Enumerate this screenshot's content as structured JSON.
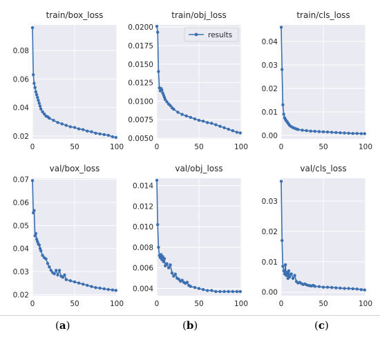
{
  "panel_labels": [
    "(a)",
    "(b)",
    "(c)"
  ],
  "panel_labels_bold": [
    "a",
    "b",
    "c"
  ],
  "chart_data": [
    {
      "type": "line",
      "title": "train/box_loss",
      "xlim": [
        0,
        100
      ],
      "ylim": [
        0.018,
        0.098
      ],
      "xticks": [
        0,
        50,
        100
      ],
      "yticks": [
        0.02,
        0.04,
        0.06,
        0.08
      ],
      "ytick_labels": [
        "0.02",
        "0.04",
        "0.06",
        "0.08"
      ],
      "grid": true,
      "series": [
        {
          "x": [
            0,
            1,
            2,
            3,
            4,
            5,
            6,
            7,
            8,
            9,
            10,
            12,
            14,
            16,
            18,
            20,
            25,
            30,
            35,
            40,
            45,
            50,
            55,
            60,
            65,
            70,
            75,
            80,
            85,
            90,
            95,
            99
          ],
          "y": [
            0.096,
            0.063,
            0.057,
            0.054,
            0.051,
            0.049,
            0.047,
            0.045,
            0.043,
            0.041,
            0.039,
            0.037,
            0.0355,
            0.034,
            0.0335,
            0.0325,
            0.031,
            0.0295,
            0.0285,
            0.0275,
            0.0265,
            0.026,
            0.025,
            0.0245,
            0.0235,
            0.023,
            0.022,
            0.0215,
            0.021,
            0.0205,
            0.0195,
            0.019
          ]
        }
      ]
    },
    {
      "type": "line",
      "title": "train/obj_loss",
      "xlim": [
        0,
        100
      ],
      "ylim": [
        0.0049,
        0.0203
      ],
      "xticks": [
        0,
        50,
        100
      ],
      "yticks": [
        0.005,
        0.0075,
        0.01,
        0.0125,
        0.015,
        0.0175,
        0.02
      ],
      "ytick_labels": [
        "0.0050",
        "0.0075",
        "0.0100",
        "0.0125",
        "0.0150",
        "0.0175",
        "0.0200"
      ],
      "grid": true,
      "legend": {
        "label": "results",
        "placement": "top-right"
      },
      "series": [
        {
          "name": "results",
          "x": [
            0,
            1,
            2,
            3,
            4,
            5,
            6,
            7,
            8,
            9,
            10,
            12,
            14,
            16,
            18,
            20,
            25,
            30,
            35,
            40,
            45,
            50,
            55,
            60,
            65,
            70,
            75,
            80,
            85,
            90,
            95,
            99
          ],
          "y": [
            0.0201,
            0.0193,
            0.014,
            0.0118,
            0.0114,
            0.0117,
            0.0115,
            0.0111,
            0.0108,
            0.0105,
            0.0102,
            0.0099,
            0.0096,
            0.0094,
            0.0091,
            0.0089,
            0.0085,
            0.0082,
            0.008,
            0.0078,
            0.0076,
            0.0074,
            0.0073,
            0.0071,
            0.007,
            0.0068,
            0.0066,
            0.0064,
            0.0062,
            0.006,
            0.0058,
            0.0057
          ]
        }
      ]
    },
    {
      "type": "line",
      "title": "train/cls_loss",
      "xlim": [
        0,
        100
      ],
      "ylim": [
        -0.0015,
        0.047
      ],
      "xticks": [
        0,
        50,
        100
      ],
      "yticks": [
        0,
        0.01,
        0.02,
        0.03,
        0.04
      ],
      "ytick_labels": [
        "0.00",
        "0.01",
        "0.02",
        "0.03",
        "0.04"
      ],
      "grid": true,
      "series": [
        {
          "x": [
            0,
            1,
            2,
            3,
            4,
            5,
            6,
            7,
            8,
            9,
            10,
            12,
            14,
            16,
            18,
            20,
            25,
            30,
            35,
            40,
            45,
            50,
            55,
            60,
            65,
            70,
            75,
            80,
            85,
            90,
            95,
            99
          ],
          "y": [
            0.046,
            0.028,
            0.013,
            0.009,
            0.0075,
            0.0068,
            0.0062,
            0.0058,
            0.0052,
            0.0047,
            0.0042,
            0.0037,
            0.0033,
            0.003,
            0.0027,
            0.0025,
            0.0022,
            0.002,
            0.0018,
            0.0017,
            0.0016,
            0.0015,
            0.0014,
            0.0013,
            0.0012,
            0.0011,
            0.001,
            0.0009,
            0.0008,
            0.0008,
            0.0007,
            0.0007
          ]
        }
      ]
    },
    {
      "type": "line",
      "title": "val/box_loss",
      "xlim": [
        0,
        100
      ],
      "ylim": [
        0.0195,
        0.0705
      ],
      "xticks": [
        0,
        50,
        100
      ],
      "yticks": [
        0.02,
        0.03,
        0.04,
        0.05,
        0.06,
        0.07
      ],
      "ytick_labels": [
        "0.02",
        "0.03",
        "0.04",
        "0.05",
        "0.06",
        "0.07"
      ],
      "grid": true,
      "series": [
        {
          "x": [
            0,
            1,
            2,
            3,
            4,
            5,
            6,
            7,
            8,
            9,
            10,
            12,
            14,
            16,
            18,
            20,
            22,
            24,
            26,
            28,
            30,
            32,
            34,
            36,
            38,
            40,
            45,
            50,
            55,
            60,
            65,
            70,
            75,
            80,
            85,
            90,
            95,
            99
          ],
          "y": [
            0.0695,
            0.0555,
            0.0565,
            0.0455,
            0.0465,
            0.044,
            0.043,
            0.042,
            0.0415,
            0.04,
            0.039,
            0.037,
            0.036,
            0.0355,
            0.0335,
            0.032,
            0.0305,
            0.0295,
            0.029,
            0.0305,
            0.0285,
            0.0305,
            0.028,
            0.0275,
            0.0285,
            0.0265,
            0.026,
            0.0255,
            0.025,
            0.0245,
            0.024,
            0.0235,
            0.023,
            0.0228,
            0.0225,
            0.0222,
            0.022,
            0.0218
          ]
        }
      ]
    },
    {
      "type": "line",
      "title": "val/obj_loss",
      "xlim": [
        0,
        100
      ],
      "ylim": [
        0.0033,
        0.0147
      ],
      "xticks": [
        0,
        50,
        100
      ],
      "yticks": [
        0.004,
        0.006,
        0.008,
        0.01,
        0.012,
        0.014
      ],
      "ytick_labels": [
        "0.004",
        "0.006",
        "0.008",
        "0.010",
        "0.012",
        "0.014"
      ],
      "grid": true,
      "series": [
        {
          "x": [
            0,
            1,
            2,
            3,
            4,
            5,
            6,
            7,
            8,
            9,
            10,
            12,
            14,
            16,
            18,
            20,
            22,
            24,
            26,
            28,
            30,
            32,
            34,
            36,
            38,
            40,
            45,
            50,
            55,
            60,
            65,
            70,
            75,
            80,
            85,
            90,
            95,
            99
          ],
          "y": [
            0.0145,
            0.0102,
            0.008,
            0.0072,
            0.007,
            0.0073,
            0.0068,
            0.0071,
            0.0066,
            0.0069,
            0.0062,
            0.0064,
            0.006,
            0.0063,
            0.0055,
            0.0052,
            0.0054,
            0.005,
            0.0049,
            0.0047,
            0.0048,
            0.0046,
            0.0045,
            0.0046,
            0.0043,
            0.0042,
            0.0041,
            0.004,
            0.0039,
            0.0038,
            0.0038,
            0.0037,
            0.0037,
            0.0037,
            0.0037,
            0.0037,
            0.0037,
            0.0037
          ]
        }
      ]
    },
    {
      "type": "line",
      "title": "val/cls_loss",
      "xlim": [
        0,
        100
      ],
      "ylim": [
        -0.0012,
        0.0375
      ],
      "xticks": [
        0,
        50,
        100
      ],
      "yticks": [
        0,
        0.01,
        0.02,
        0.03
      ],
      "ytick_labels": [
        "0.00",
        "0.01",
        "0.02",
        "0.03"
      ],
      "grid": true,
      "series": [
        {
          "x": [
            0,
            1,
            2,
            3,
            4,
            5,
            6,
            7,
            8,
            9,
            10,
            12,
            14,
            16,
            18,
            20,
            22,
            24,
            26,
            28,
            30,
            32,
            34,
            36,
            38,
            40,
            45,
            50,
            55,
            60,
            65,
            70,
            75,
            80,
            85,
            90,
            95,
            99
          ],
          "y": [
            0.0365,
            0.017,
            0.0085,
            0.007,
            0.006,
            0.009,
            0.0055,
            0.0065,
            0.0045,
            0.007,
            0.005,
            0.006,
            0.0045,
            0.0055,
            0.0035,
            0.003,
            0.0032,
            0.0028,
            0.0025,
            0.0027,
            0.0024,
            0.0022,
            0.0021,
            0.002,
            0.0022,
            0.0019,
            0.0018,
            0.0016,
            0.0016,
            0.0015,
            0.0014,
            0.0013,
            0.0012,
            0.0012,
            0.0011,
            0.001,
            0.0008,
            0.0007
          ]
        }
      ]
    }
  ]
}
